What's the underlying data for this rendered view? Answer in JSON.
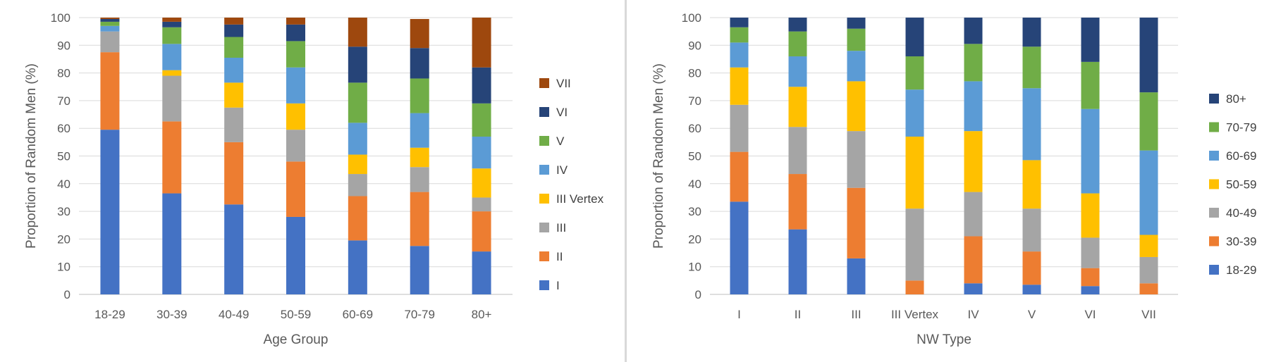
{
  "chart_data": [
    {
      "type": "bar",
      "stacked": true,
      "categories": [
        "18-29",
        "30-39",
        "40-49",
        "50-59",
        "60-69",
        "70-79",
        "80+"
      ],
      "xlabel": "Age Group",
      "ylabel": "Proportion of Random Men (%)",
      "ylim": [
        0,
        100
      ],
      "yticks": [
        0,
        10,
        20,
        30,
        40,
        50,
        60,
        70,
        80,
        90,
        100
      ],
      "grid": true,
      "legend_position": "right",
      "series": [
        {
          "name": "I",
          "color": "#4472C4",
          "values": [
            59.5,
            36.5,
            32.5,
            28,
            19.5,
            17.5,
            15.5
          ]
        },
        {
          "name": "II",
          "color": "#ED7D31",
          "values": [
            28,
            26,
            22.5,
            20,
            16,
            19.5,
            14.5
          ]
        },
        {
          "name": "III",
          "color": "#A5A5A5",
          "values": [
            7.5,
            16.5,
            12.5,
            11.5,
            8,
            9,
            5
          ]
        },
        {
          "name": "III Vertex",
          "color": "#FFC000",
          "values": [
            0,
            2,
            9,
            9.5,
            7,
            7,
            10.5
          ]
        },
        {
          "name": "IV",
          "color": "#5B9BD5",
          "values": [
            2,
            9.5,
            9,
            13,
            11.5,
            12.5,
            11.5
          ]
        },
        {
          "name": "V",
          "color": "#70AD47",
          "values": [
            1.5,
            6,
            7.5,
            9.5,
            14.5,
            12.5,
            12
          ]
        },
        {
          "name": "VI",
          "color": "#264478",
          "values": [
            1,
            2,
            4.5,
            6,
            13,
            11,
            13
          ]
        },
        {
          "name": "VII",
          "color": "#9E480E",
          "values": [
            0.5,
            1.5,
            2.5,
            2.5,
            10.5,
            10.5,
            18
          ]
        }
      ]
    },
    {
      "type": "bar",
      "stacked": true,
      "categories": [
        "I",
        "II",
        "III",
        "III Vertex",
        "IV",
        "V",
        "VI",
        "VII"
      ],
      "xlabel": "NW Type",
      "ylabel": "Proportion of Random Men (%)",
      "ylim": [
        0,
        100
      ],
      "yticks": [
        0,
        10,
        20,
        30,
        40,
        50,
        60,
        70,
        80,
        90,
        100
      ],
      "grid": true,
      "legend_position": "right",
      "series": [
        {
          "name": "18-29",
          "color": "#4472C4",
          "values": [
            33.5,
            23.5,
            13,
            0,
            4,
            3.5,
            3,
            0
          ]
        },
        {
          "name": "30-39",
          "color": "#ED7D31",
          "values": [
            18,
            20,
            25.5,
            5,
            17,
            12,
            6.5,
            4
          ]
        },
        {
          "name": "40-49",
          "color": "#A5A5A5",
          "values": [
            17,
            17,
            20.5,
            26,
            16,
            15.5,
            11,
            9.5
          ]
        },
        {
          "name": "50-59",
          "color": "#FFC000",
          "values": [
            13.5,
            14.5,
            18,
            26,
            22,
            17.5,
            16,
            8
          ]
        },
        {
          "name": "60-69",
          "color": "#5B9BD5",
          "values": [
            9,
            11,
            11,
            17,
            18,
            26,
            30.5,
            30.5
          ]
        },
        {
          "name": "70-79",
          "color": "#70AD47",
          "values": [
            5.5,
            9,
            8,
            12,
            13.5,
            15,
            17,
            21
          ]
        },
        {
          "name": "80+",
          "color": "#264478",
          "values": [
            3.5,
            5,
            4,
            14,
            9.5,
            10.5,
            16,
            27
          ]
        }
      ]
    }
  ]
}
